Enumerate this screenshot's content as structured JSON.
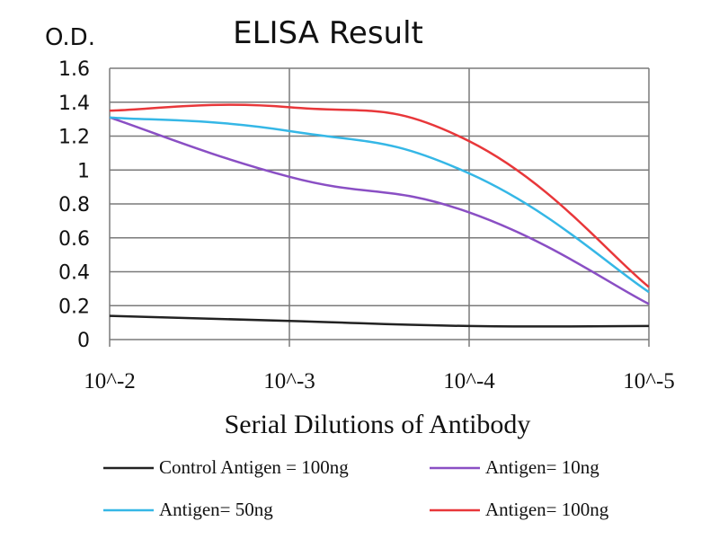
{
  "chart_data": {
    "type": "line",
    "title": "ELISA Result",
    "ylabel": "O.D.",
    "xlabel": "Serial Dilutions of Antibody",
    "categories": [
      "10^-2",
      "10^-3",
      "10^-4",
      "10^-5"
    ],
    "ylim": [
      0,
      1.6
    ],
    "yticks": [
      "0",
      "0.2",
      "0.4",
      "0.6",
      "0.8",
      "1",
      "1.2",
      "1.4",
      "1.6"
    ],
    "grid": true,
    "legend_position": "bottom",
    "series": [
      {
        "name": "Control Antigen = 100ng",
        "color": "#222222",
        "values": [
          0.14,
          0.11,
          0.08,
          0.08
        ]
      },
      {
        "name": "Antigen= 10ng",
        "color": "#8a4fc4",
        "values": [
          1.31,
          0.96,
          0.75,
          0.21
        ]
      },
      {
        "name": "Antigen= 50ng",
        "color": "#35b7e6",
        "values": [
          1.31,
          1.23,
          0.98,
          0.28
        ]
      },
      {
        "name": "Antigen= 100ng",
        "color": "#e8373a",
        "values": [
          1.35,
          1.37,
          1.17,
          0.31
        ]
      }
    ]
  }
}
